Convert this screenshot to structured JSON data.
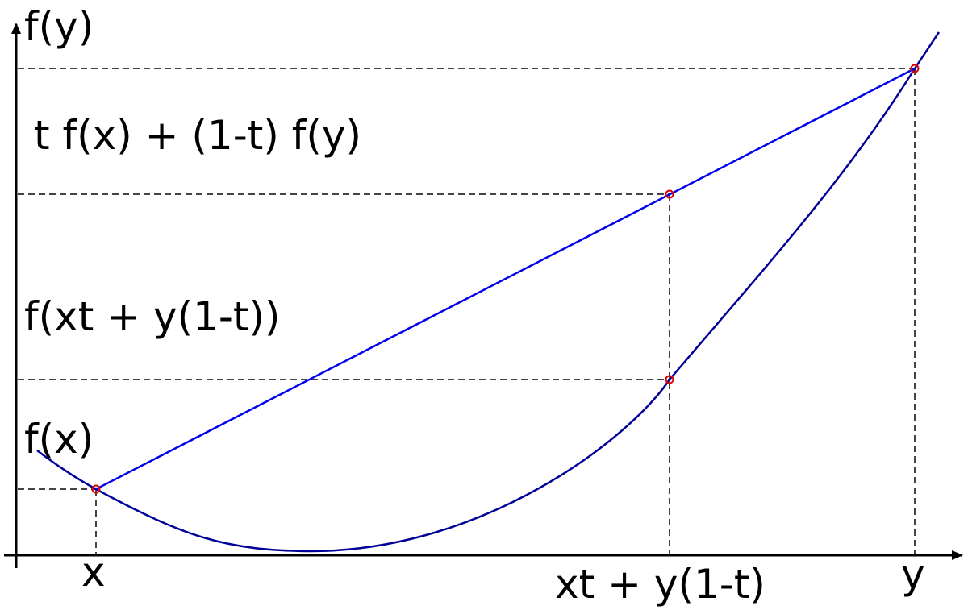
{
  "diagram": {
    "labels": {
      "y_axis_top": "f(y)",
      "line_value": "t f(x) + (1-t) f(y)",
      "curve_value": "f(xt + y(1-t))",
      "fx": "f(x)",
      "x_tick_x": "x",
      "x_tick_mid": "xt + y(1-t)",
      "x_tick_y": "y"
    },
    "colors": {
      "curve": "#000099",
      "secant": "#0000ee",
      "points": "#dd0000",
      "guides": "#444444",
      "axes": "#000000"
    }
  }
}
